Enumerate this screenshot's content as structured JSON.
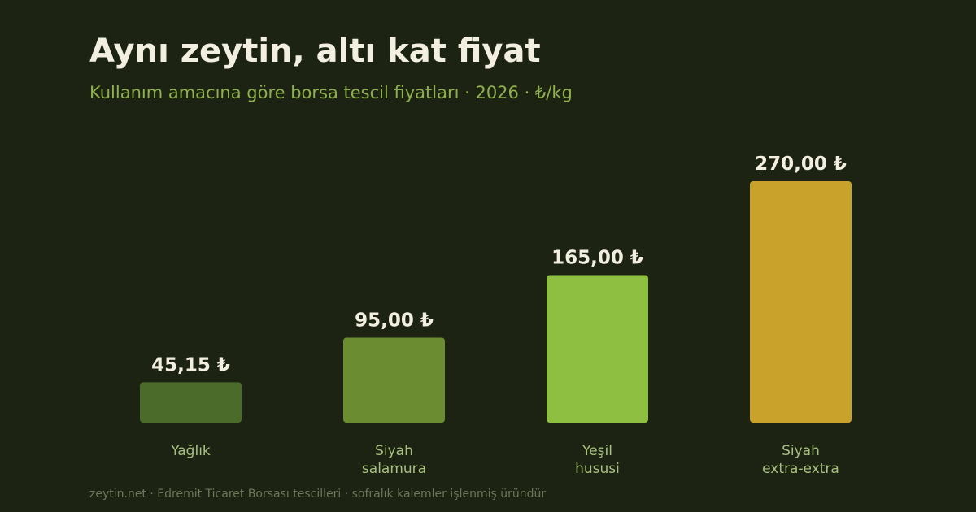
{
  "header": {
    "title": "Aynı zeytin, altı kat fiyat",
    "subtitle": "Kullanım amacına göre borsa tescil fiyatları · 2026 · ₺/kg"
  },
  "footer": {
    "note": "zeytin.net · Edremit Ticaret Borsası tescilleri · sofralık kalemler işlenmiş üründür"
  },
  "chart_data": {
    "type": "bar",
    "title": "Aynı zeytin, altı kat fiyat",
    "subtitle": "Kullanım amacına göre borsa tescil fiyatları · 2026 · ₺/kg",
    "categories": [
      [
        "Yağlık"
      ],
      [
        "Siyah",
        "salamura"
      ],
      [
        "Yeşil",
        "hususi"
      ],
      [
        "Siyah",
        "extra-extra"
      ]
    ],
    "values": [
      45.15,
      95.0,
      165.0,
      270.0
    ],
    "value_labels": [
      "45,15 ₺",
      "95,00 ₺",
      "165,00 ₺",
      "270,00 ₺"
    ],
    "colors": [
      "#4a6b2a",
      "#6b8c30",
      "#8fbf40",
      "#c9a22c"
    ],
    "ylim": [
      0,
      270
    ],
    "grid": false,
    "legend": "none"
  }
}
